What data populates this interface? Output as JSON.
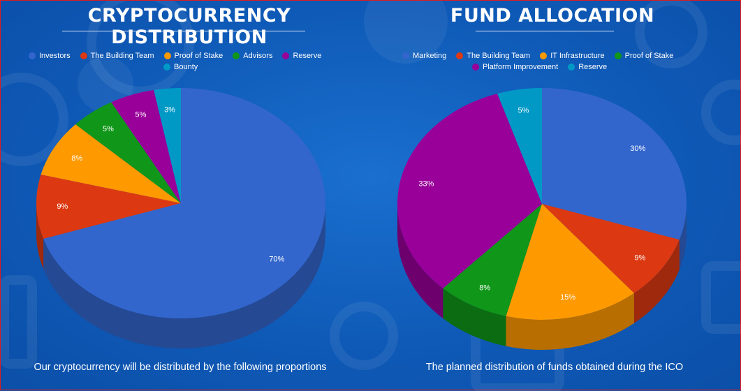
{
  "colors": {
    "blue": "#3366cc",
    "red": "#dc3912",
    "orange": "#ff9900",
    "green": "#109618",
    "purple": "#990099",
    "cyan": "#0099c6"
  },
  "chart_data": [
    {
      "type": "pie",
      "title": "CRYPTOCURRENCY DISTRIBUTION",
      "caption": "Our cryptocurrency will be distributed by the following proportions",
      "legend_position": "top",
      "slices": [
        {
          "label": "Investors",
          "value": 70,
          "display": "70%",
          "color": "#3366cc"
        },
        {
          "label": "The Building Team",
          "value": 9,
          "display": "9%",
          "color": "#dc3912"
        },
        {
          "label": "Proof of Stake",
          "value": 8,
          "display": "8%",
          "color": "#ff9900"
        },
        {
          "label": "Advisors",
          "value": 5,
          "display": "5%",
          "color": "#109618"
        },
        {
          "label": "Reserve",
          "value": 5,
          "display": "5%",
          "color": "#990099"
        },
        {
          "label": "Bounty",
          "value": 3,
          "display": "3%",
          "color": "#0099c6"
        }
      ]
    },
    {
      "type": "pie",
      "title": "FUND ALLOCATION",
      "caption": "The planned distribution of funds obtained during the ICO",
      "legend_position": "top",
      "slices": [
        {
          "label": "Marketing",
          "value": 30,
          "display": "30%",
          "color": "#3366cc"
        },
        {
          "label": "The Building Team",
          "value": 9,
          "display": "9%",
          "color": "#dc3912"
        },
        {
          "label": "IT Infrastructure",
          "value": 15,
          "display": "15%",
          "color": "#ff9900"
        },
        {
          "label": "Proof of Stake",
          "value": 8,
          "display": "8%",
          "color": "#109618"
        },
        {
          "label": "Platform Improvement",
          "value": 33,
          "display": "33%",
          "color": "#990099"
        },
        {
          "label": "Reserve",
          "value": 5,
          "display": "5%",
          "color": "#0099c6"
        }
      ]
    }
  ]
}
